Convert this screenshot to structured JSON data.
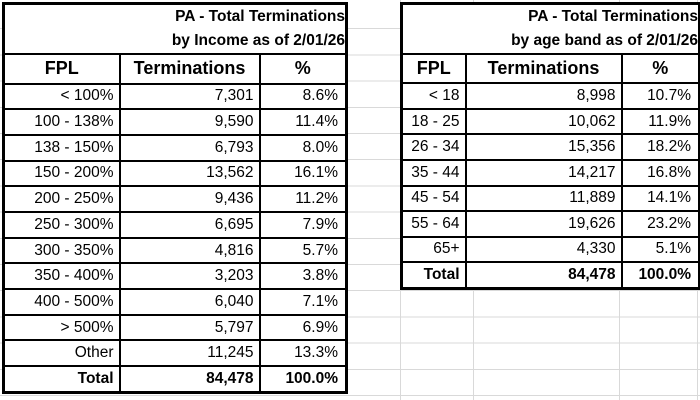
{
  "sheet": {
    "background": "#ffffff",
    "gridline_color": "#d9d9d9",
    "table_border_color": "#000000",
    "text_color": "#000000"
  },
  "tables": [
    {
      "title_line1": "PA - Total Terminations",
      "title_line2": "by Income as of 2/01/26",
      "columns": [
        "FPL",
        "Terminations",
        "%"
      ],
      "rows": [
        [
          "< 100%",
          "7,301",
          "8.6%"
        ],
        [
          "100 - 138%",
          "9,590",
          "11.4%"
        ],
        [
          "138 - 150%",
          "6,793",
          "8.0%"
        ],
        [
          "150 - 200%",
          "13,562",
          "16.1%"
        ],
        [
          "200 - 250%",
          "9,436",
          "11.2%"
        ],
        [
          "250 - 300%",
          "6,695",
          "7.9%"
        ],
        [
          "300 - 350%",
          "4,816",
          "5.7%"
        ],
        [
          "350 - 400%",
          "3,203",
          "3.8%"
        ],
        [
          "400 - 500%",
          "6,040",
          "7.1%"
        ],
        [
          "> 500%",
          "5,797",
          "6.9%"
        ],
        [
          "Other",
          "11,245",
          "13.3%"
        ]
      ],
      "total_row": [
        "Total",
        "84,478",
        "100.0%"
      ]
    },
    {
      "title_line1": "PA - Total Terminations",
      "title_line2": "by age band as of 2/01/26",
      "columns": [
        "FPL",
        "Terminations",
        "%"
      ],
      "rows": [
        [
          "< 18",
          "8,998",
          "10.7%"
        ],
        [
          "18 - 25",
          "10,062",
          "11.9%"
        ],
        [
          "26 - 34",
          "15,356",
          "18.2%"
        ],
        [
          "35 - 44",
          "14,217",
          "16.8%"
        ],
        [
          "45 - 54",
          "11,889",
          "14.1%"
        ],
        [
          "55 - 64",
          "19,626",
          "23.2%"
        ],
        [
          "65+",
          "4,330",
          "5.1%"
        ]
      ],
      "total_row": [
        "Total",
        "84,478",
        "100.0%"
      ]
    }
  ]
}
